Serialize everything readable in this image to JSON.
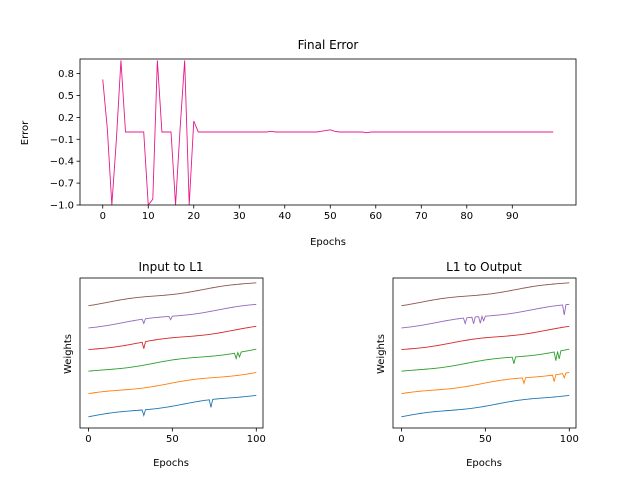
{
  "chart_data": [
    {
      "type": "line",
      "title": "Final Error",
      "xlabel": "Epochs",
      "ylabel": "Error",
      "xlim": [
        -5,
        104
      ],
      "ylim": [
        -1.0,
        1.0
      ],
      "xticks": [
        0,
        10,
        20,
        30,
        40,
        50,
        60,
        70,
        80,
        90
      ],
      "yticks": [
        -1.0,
        -0.7,
        -0.4,
        -0.1,
        0.2,
        0.5,
        0.8
      ],
      "ytick_labels": [
        "−1.0",
        "−0.7",
        "−0.4",
        "−0.1",
        "0.2",
        "0.5",
        "0.8"
      ],
      "grid": false,
      "series": [
        {
          "color": "#e8198b",
          "x": [
            0,
            1,
            2,
            3,
            4,
            5,
            6,
            7,
            8,
            9,
            10,
            11,
            12,
            13,
            14,
            15,
            16,
            17,
            18,
            19,
            20,
            21,
            22,
            23,
            24,
            25,
            26,
            27,
            28,
            29,
            30,
            31,
            32,
            33,
            34,
            35,
            36,
            37,
            38,
            39,
            40,
            41,
            42,
            43,
            44,
            45,
            46,
            47,
            48,
            49,
            50,
            51,
            52,
            53,
            54,
            55,
            56,
            57,
            58,
            59,
            60,
            61,
            62,
            63,
            64,
            65,
            66,
            67,
            68,
            69,
            70,
            71,
            72,
            73,
            74,
            75,
            76,
            77,
            78,
            79,
            80,
            81,
            82,
            83,
            84,
            85,
            86,
            87,
            88,
            89,
            90,
            91,
            92,
            93,
            94,
            95,
            96,
            97,
            98,
            99
          ],
          "values": [
            0.72,
            0.05,
            -1.0,
            -0.1,
            0.98,
            0.0,
            0.0,
            0.0,
            0.0,
            0.0,
            -1.0,
            -0.92,
            0.98,
            0.0,
            0.0,
            0.0,
            -1.0,
            0.05,
            0.98,
            -1.0,
            0.15,
            0.0,
            0.0,
            0.0,
            0.0,
            0.0,
            0.0,
            0.0,
            0.0,
            0.0,
            0.0,
            0.0,
            0.0,
            0.0,
            0.0,
            0.0,
            0.0,
            0.01,
            0.0,
            0.0,
            0.0,
            0.0,
            0.0,
            0.0,
            0.0,
            0.0,
            0.0,
            0.0,
            0.01,
            0.02,
            0.03,
            0.01,
            0.0,
            0.0,
            0.0,
            0.0,
            0.0,
            0.0,
            -0.01,
            0.0,
            0.0,
            0.0,
            0.0,
            0.0,
            0.0,
            0.0,
            0.0,
            0.0,
            0.0,
            0.0,
            0.0,
            0.0,
            0.0,
            0.0,
            0.0,
            0.0,
            0.0,
            0.0,
            0.0,
            0.0,
            0.0,
            0.0,
            0.0,
            0.0,
            0.0,
            0.0,
            0.0,
            0.0,
            0.0,
            0.0,
            0.0,
            0.0,
            0.0,
            0.0,
            0.0,
            0.0,
            0.0,
            0.0,
            0.0,
            0.0
          ]
        }
      ]
    },
    {
      "type": "line",
      "title": "Input to L1",
      "xlabel": "Epochs",
      "ylabel": "Weights",
      "xlim": [
        -5,
        104
      ],
      "ylim": [
        -0.5,
        6.2
      ],
      "xticks": [
        0,
        50,
        100
      ],
      "grid": false,
      "series": [
        {
          "color": "#1f77b4",
          "start": 0.0,
          "end": 1.0,
          "dips": [
            [
              33,
              0.25
            ],
            [
              73,
              0.35
            ]
          ]
        },
        {
          "color": "#ff7f0e",
          "start": 1.0,
          "end": 2.0,
          "dips": []
        },
        {
          "color": "#2ca02c",
          "start": 2.0,
          "end": 3.0,
          "dips": [
            [
              88,
              0.25
            ],
            [
              90,
              0.2
            ]
          ]
        },
        {
          "color": "#d62728",
          "start": 3.0,
          "end": 4.0,
          "dips": [
            [
              33,
              0.3
            ]
          ]
        },
        {
          "color": "#9467bd",
          "start": 4.0,
          "end": 5.0,
          "dips": [
            [
              33,
              0.2
            ],
            [
              49,
              0.15
            ]
          ]
        },
        {
          "color": "#8c564b",
          "start": 5.0,
          "end": 6.0,
          "dips": []
        }
      ]
    },
    {
      "type": "line",
      "title": "L1 to Output",
      "xlabel": "Epochs",
      "ylabel": "Weights",
      "xlim": [
        -5,
        104
      ],
      "ylim": [
        -0.5,
        6.2
      ],
      "xticks": [
        0,
        50,
        100
      ],
      "grid": false,
      "series": [
        {
          "color": "#1f77b4",
          "start": 0.0,
          "end": 1.0,
          "dips": []
        },
        {
          "color": "#ff7f0e",
          "start": 1.0,
          "end": 2.0,
          "dips": [
            [
              73,
              0.25
            ],
            [
              91,
              0.3
            ],
            [
              97,
              0.2
            ]
          ]
        },
        {
          "color": "#2ca02c",
          "start": 2.0,
          "end": 3.0,
          "dips": [
            [
              67,
              0.3
            ],
            [
              92,
              0.4
            ],
            [
              94,
              0.35
            ]
          ]
        },
        {
          "color": "#d62728",
          "start": 3.0,
          "end": 4.0,
          "dips": []
        },
        {
          "color": "#9467bd",
          "start": 4.0,
          "end": 5.0,
          "dips": [
            [
              38,
              0.25
            ],
            [
              43,
              0.3
            ],
            [
              47,
              0.3
            ],
            [
              49,
              0.2
            ],
            [
              97,
              0.45
            ]
          ]
        },
        {
          "color": "#8c564b",
          "start": 5.0,
          "end": 6.0,
          "dips": []
        }
      ]
    }
  ]
}
